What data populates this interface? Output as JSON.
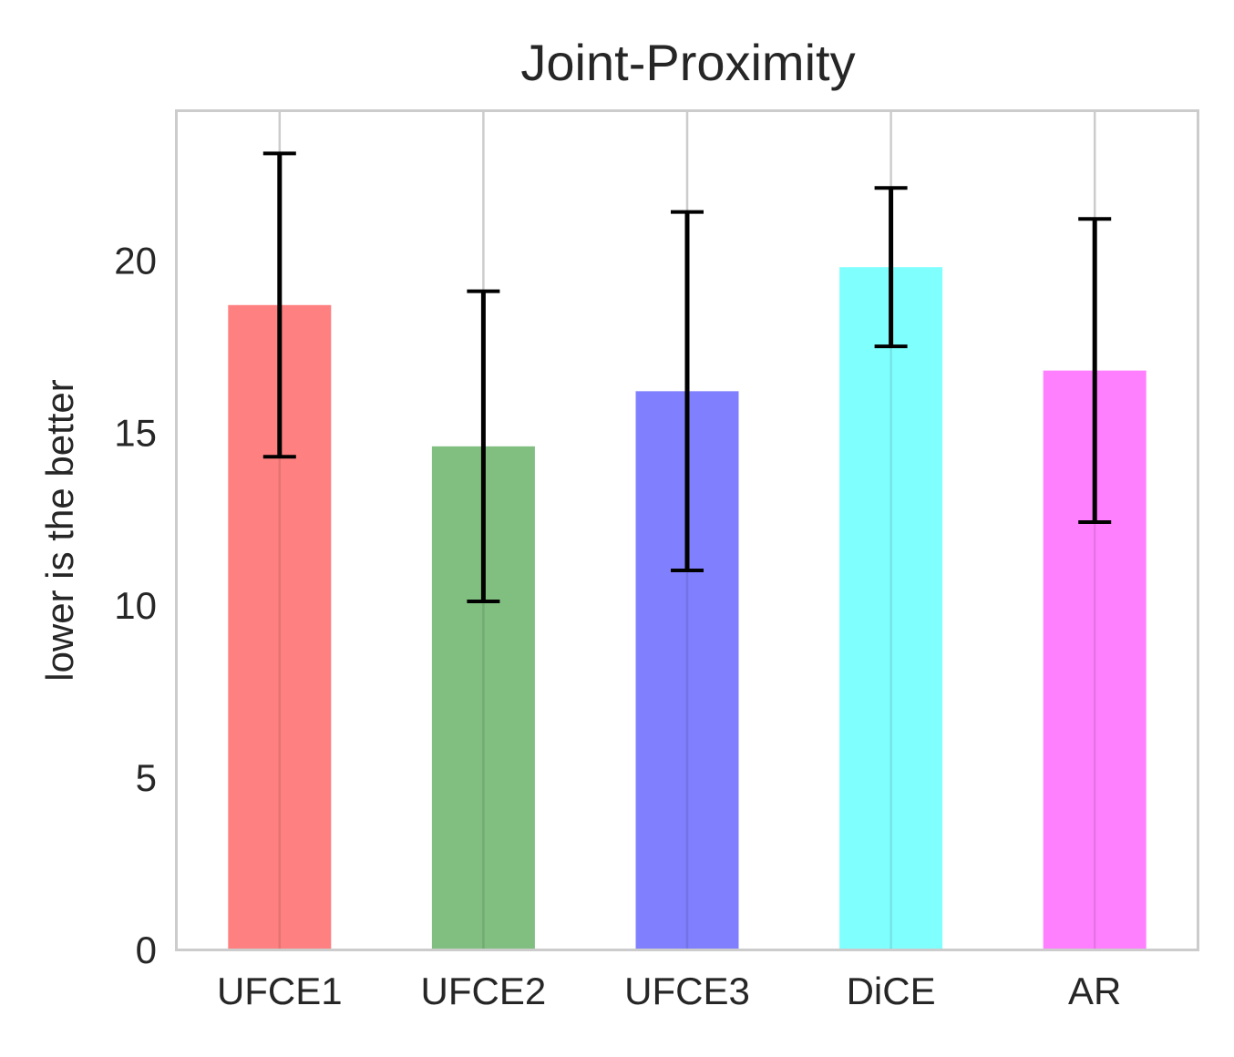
{
  "chart_data": {
    "type": "bar",
    "title": "Joint-Proximity",
    "xlabel": "",
    "ylabel": "lower is the better",
    "categories": [
      "UFCE1",
      "UFCE2",
      "UFCE3",
      "DiCE",
      "AR"
    ],
    "values": [
      18.7,
      14.6,
      16.2,
      19.8,
      16.8
    ],
    "errors": [
      4.4,
      4.5,
      5.2,
      2.3,
      4.4
    ],
    "colors": [
      "#ff8080",
      "#80bf80",
      "#8080ff",
      "#80ffff",
      "#ff80ff"
    ],
    "ylim": [
      0,
      24.3
    ],
    "yticks": [
      0,
      5,
      10,
      15,
      20
    ],
    "ytick_labels": [
      "0",
      "5",
      "10",
      "15",
      "20"
    ],
    "grid": "vertical",
    "legend": "none"
  }
}
